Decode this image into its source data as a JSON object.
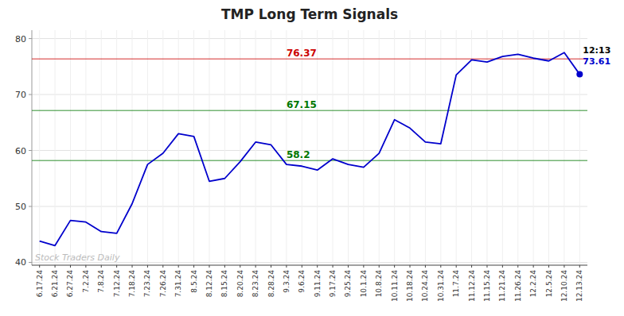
{
  "chart_data": {
    "type": "line",
    "title": "TMP Long Term Signals",
    "categories": [
      "6.17.24",
      "6.21.24",
      "6.27.24",
      "7.2.24",
      "7.8.24",
      "7.12.24",
      "7.18.24",
      "7.23.24",
      "7.26.24",
      "7.31.24",
      "8.5.24",
      "8.12.24",
      "8.15.24",
      "8.20.24",
      "8.23.24",
      "8.28.24",
      "9.3.24",
      "9.6.24",
      "9.11.24",
      "9.17.24",
      "9.25.24",
      "10.1.24",
      "10.8.24",
      "10.11.24",
      "10.18.24",
      "10.24.24",
      "10.31.24",
      "11.7.24",
      "11.12.24",
      "11.15.24",
      "11.21.24",
      "11.26.24",
      "12.2.24",
      "12.5.24",
      "12.10.24",
      "12.13.24"
    ],
    "values": [
      43.8,
      43.0,
      47.5,
      47.2,
      45.5,
      45.2,
      50.5,
      57.5,
      59.5,
      63.0,
      62.5,
      54.5,
      55.0,
      58.0,
      61.5,
      61.0,
      57.5,
      57.2,
      56.5,
      58.5,
      57.5,
      57.0,
      59.5,
      65.5,
      64.0,
      61.5,
      61.2,
      73.5,
      76.2,
      75.8,
      76.8,
      77.2,
      76.5,
      76.0,
      77.5,
      73.61
    ],
    "color": "#0000cc",
    "ylim": [
      39.5,
      81.5
    ],
    "yticks": [
      40,
      50,
      60,
      70,
      80
    ],
    "grid": true,
    "reference_lines": [
      {
        "value": 76.37,
        "label": "76.37",
        "color": "#cc0000"
      },
      {
        "value": 67.15,
        "label": "67.15",
        "color": "#007700"
      },
      {
        "value": 58.2,
        "label": "58.2",
        "color": "#007700"
      }
    ],
    "annotations": [
      {
        "text": "12:13"
      },
      {
        "text": "73.61",
        "color": "#0000cc"
      },
      {
        "text": "Stock Traders Daily",
        "color": "#bbbbbb"
      }
    ]
  }
}
